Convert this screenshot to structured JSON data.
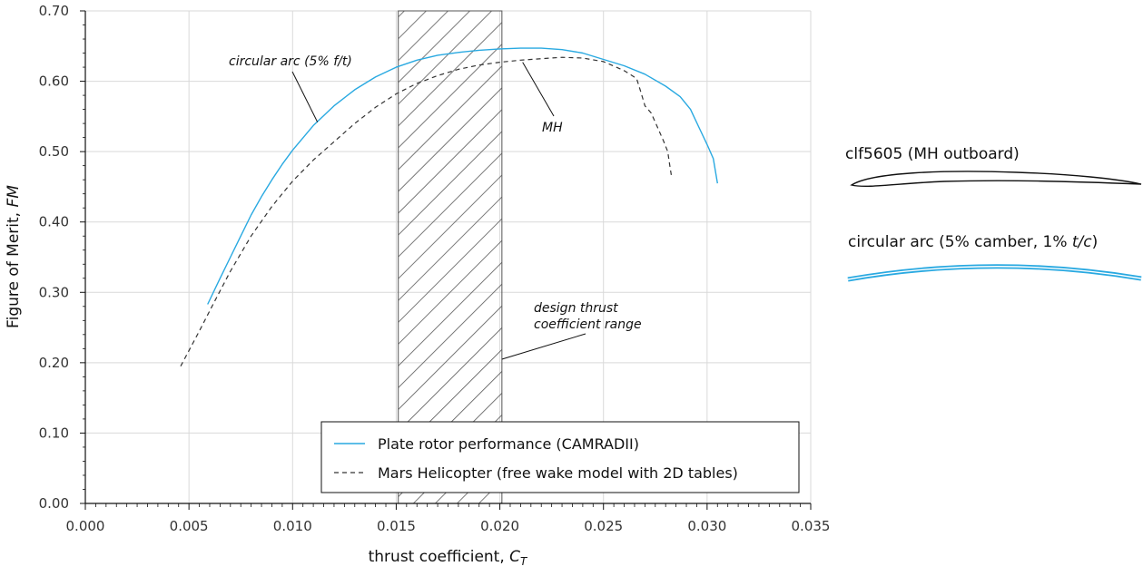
{
  "chart_data": {
    "type": "line",
    "title": "",
    "xlabel": "thrust coefficient, ",
    "xlabel_symbol": "C",
    "xlabel_subscript": "T",
    "ylabel": "Figure of Merit, ",
    "ylabel_symbol": "FM",
    "xlim": [
      0,
      0.035
    ],
    "ylim": [
      0,
      0.7
    ],
    "x_ticks": [
      "0.000",
      "0.005",
      "0.010",
      "0.015",
      "0.020",
      "0.025",
      "0.030",
      "0.035"
    ],
    "y_ticks": [
      "0.00",
      "0.10",
      "0.20",
      "0.30",
      "0.40",
      "0.50",
      "0.60",
      "0.70"
    ],
    "grid": true,
    "legend_position": "bottom-right",
    "series": [
      {
        "name": "Plate rotor performance (CAMRADII)",
        "color": "#29a9e1",
        "style": "solid",
        "points": [
          [
            0.0059,
            0.283
          ],
          [
            0.0065,
            0.32
          ],
          [
            0.007,
            0.35
          ],
          [
            0.0075,
            0.38
          ],
          [
            0.008,
            0.41
          ],
          [
            0.0085,
            0.436
          ],
          [
            0.009,
            0.46
          ],
          [
            0.0095,
            0.482
          ],
          [
            0.01,
            0.502
          ],
          [
            0.011,
            0.537
          ],
          [
            0.012,
            0.565
          ],
          [
            0.013,
            0.588
          ],
          [
            0.014,
            0.606
          ],
          [
            0.015,
            0.62
          ],
          [
            0.016,
            0.63
          ],
          [
            0.017,
            0.637
          ],
          [
            0.018,
            0.641
          ],
          [
            0.019,
            0.644
          ],
          [
            0.02,
            0.646
          ],
          [
            0.021,
            0.647
          ],
          [
            0.022,
            0.647
          ],
          [
            0.023,
            0.645
          ],
          [
            0.024,
            0.64
          ],
          [
            0.025,
            0.631
          ],
          [
            0.026,
            0.622
          ],
          [
            0.027,
            0.61
          ],
          [
            0.028,
            0.593
          ],
          [
            0.0287,
            0.578
          ],
          [
            0.0292,
            0.56
          ],
          [
            0.0296,
            0.535
          ],
          [
            0.03,
            0.51
          ],
          [
            0.0303,
            0.49
          ],
          [
            0.0305,
            0.455
          ]
        ]
      },
      {
        "name": "Mars Helicopter (free wake model with 2D tables)",
        "color": "#333333",
        "style": "dashed",
        "points": [
          [
            0.0046,
            0.195
          ],
          [
            0.0055,
            0.245
          ],
          [
            0.0062,
            0.285
          ],
          [
            0.007,
            0.33
          ],
          [
            0.008,
            0.38
          ],
          [
            0.009,
            0.422
          ],
          [
            0.01,
            0.458
          ],
          [
            0.011,
            0.488
          ],
          [
            0.012,
            0.514
          ],
          [
            0.013,
            0.54
          ],
          [
            0.014,
            0.563
          ],
          [
            0.015,
            0.582
          ],
          [
            0.016,
            0.597
          ],
          [
            0.017,
            0.608
          ],
          [
            0.018,
            0.617
          ],
          [
            0.019,
            0.623
          ],
          [
            0.02,
            0.627
          ],
          [
            0.021,
            0.63
          ],
          [
            0.022,
            0.632
          ],
          [
            0.023,
            0.634
          ],
          [
            0.024,
            0.633
          ],
          [
            0.025,
            0.628
          ],
          [
            0.026,
            0.615
          ],
          [
            0.0266,
            0.604
          ],
          [
            0.0268,
            0.585
          ],
          [
            0.027,
            0.565
          ],
          [
            0.0273,
            0.555
          ],
          [
            0.0276,
            0.535
          ],
          [
            0.0279,
            0.515
          ],
          [
            0.0281,
            0.5
          ],
          [
            0.0282,
            0.48
          ],
          [
            0.0283,
            0.462
          ]
        ]
      }
    ],
    "shaded_range": {
      "x": [
        0.0151,
        0.0201
      ],
      "pattern": "diagonal-hatch"
    },
    "annotations": [
      {
        "id": "arc",
        "text": "circular arc (5% f/t)",
        "target": [
          0.0112,
          0.542
        ]
      },
      {
        "id": "mh",
        "text": "MH",
        "target": [
          0.0211,
          0.627
        ]
      },
      {
        "id": "design1",
        "text": "design thrust",
        "target": null
      },
      {
        "id": "design2",
        "text": "coefficient range",
        "target": [
          0.0201,
          0.205
        ]
      }
    ]
  },
  "airfoils": [
    {
      "label": "clf5605 (MH outboard)",
      "color": "#111111"
    },
    {
      "label_plain": "circular arc (5% camber, 1% ",
      "label_italic": "t/c",
      "label_end": ")",
      "color": "#29a9e1"
    }
  ]
}
